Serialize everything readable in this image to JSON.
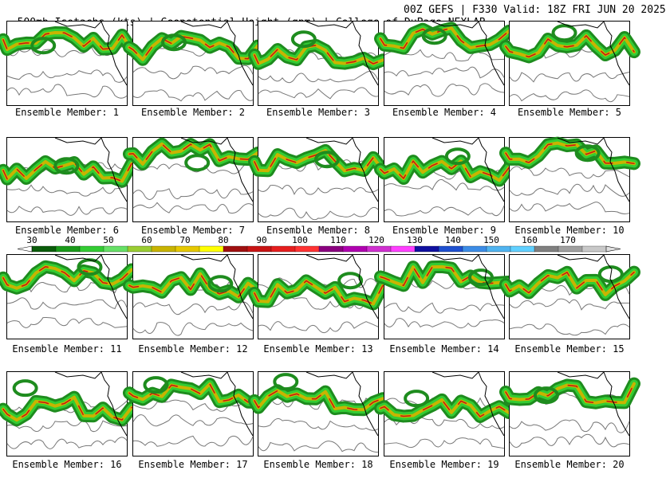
{
  "header": {
    "left": "500mb Isotachs (kts) | Geopotential Height (gpm) | College of DuPage NEXLAB",
    "right": "00Z GEFS | F330 Valid: 18Z FRI JUN 20 2025"
  },
  "panels": [
    {
      "label": "Ensemble Member: 1"
    },
    {
      "label": "Ensemble Member: 2"
    },
    {
      "label": "Ensemble Member: 3"
    },
    {
      "label": "Ensemble Member: 4"
    },
    {
      "label": "Ensemble Member: 5"
    },
    {
      "label": "Ensemble Member: 6"
    },
    {
      "label": "Ensemble Member: 7"
    },
    {
      "label": "Ensemble Member: 8"
    },
    {
      "label": "Ensemble Member: 9"
    },
    {
      "label": "Ensemble Member: 10"
    },
    {
      "label": "Ensemble Member: 11"
    },
    {
      "label": "Ensemble Member: 12"
    },
    {
      "label": "Ensemble Member: 13"
    },
    {
      "label": "Ensemble Member: 14"
    },
    {
      "label": "Ensemble Member: 15"
    },
    {
      "label": "Ensemble Member: 16"
    },
    {
      "label": "Ensemble Member: 17"
    },
    {
      "label": "Ensemble Member: 18"
    },
    {
      "label": "Ensemble Member: 19"
    },
    {
      "label": "Ensemble Member: 20"
    }
  ],
  "colorbar": {
    "labels": [
      "30",
      "40",
      "50",
      "60",
      "70",
      "80",
      "90",
      "100",
      "110",
      "120",
      "130",
      "140",
      "150",
      "160",
      "170"
    ],
    "colors": [
      "#0a5c0a",
      "#1a9a1a",
      "#33cc33",
      "#66e066",
      "#9acd32",
      "#c8b400",
      "#e6c800",
      "#ffff00",
      "#a01010",
      "#c81414",
      "#e61e1e",
      "#ff3333",
      "#8b0080",
      "#b000b0",
      "#d030d0",
      "#ff40ff",
      "#1010a0",
      "#1e50d0",
      "#3c8ce6",
      "#50b4f0",
      "#60d0ff",
      "#808080",
      "#a0a0a0",
      "#c8c8c8"
    ]
  }
}
